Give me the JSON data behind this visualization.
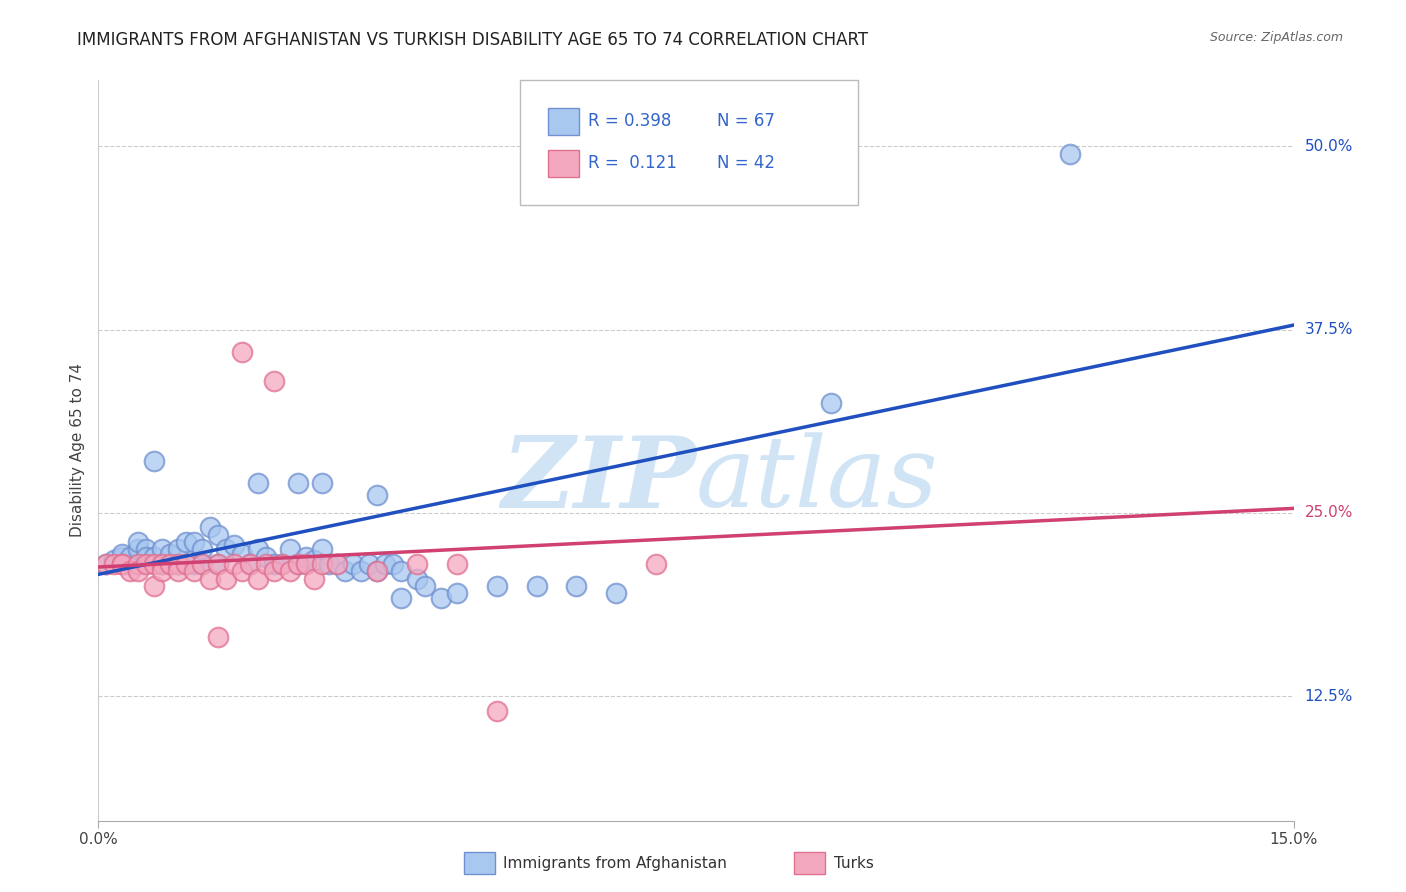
{
  "title": "IMMIGRANTS FROM AFGHANISTAN VS TURKISH DISABILITY AGE 65 TO 74 CORRELATION CHART",
  "source": "Source: ZipAtlas.com",
  "ylabel": "Disability Age 65 to 74",
  "xlim": [
    0.0,
    0.15
  ],
  "ylim": [
    0.04,
    0.545
  ],
  "blue_color": "#a8c8f0",
  "pink_color": "#f4a8c0",
  "blue_edge": "#7090d0",
  "pink_edge": "#e07090",
  "line_blue": "#2050c0",
  "line_pink": "#d04070",
  "watermark_color": "#d0e4f5",
  "grid_color": "#cccccc",
  "background_color": "#ffffff",
  "title_fontsize": 12,
  "axis_fontsize": 10,
  "legend_R_blue": "0.398",
  "legend_N_blue": "67",
  "legend_R_pink": "0.121",
  "legend_N_pink": "42",
  "blue_line_x": [
    0.0,
    0.15
  ],
  "blue_line_y": [
    0.208,
    0.378
  ],
  "pink_line_x": [
    0.0,
    0.15
  ],
  "pink_line_y": [
    0.213,
    0.253
  ],
  "afghanistan_x": [
    0.001,
    0.002,
    0.003,
    0.003,
    0.004,
    0.004,
    0.005,
    0.005,
    0.005,
    0.006,
    0.006,
    0.006,
    0.007,
    0.007,
    0.008,
    0.008,
    0.009,
    0.009,
    0.01,
    0.01,
    0.011,
    0.011,
    0.012,
    0.012,
    0.013,
    0.013,
    0.014,
    0.015,
    0.015,
    0.016,
    0.017,
    0.018,
    0.019,
    0.02,
    0.021,
    0.022,
    0.023,
    0.024,
    0.025,
    0.026,
    0.027,
    0.028,
    0.029,
    0.03,
    0.031,
    0.032,
    0.033,
    0.034,
    0.035,
    0.036,
    0.037,
    0.038,
    0.04,
    0.041,
    0.043,
    0.045,
    0.05,
    0.055,
    0.06,
    0.065,
    0.02,
    0.025,
    0.028,
    0.035,
    0.038,
    0.092,
    0.122
  ],
  "afghanistan_y": [
    0.215,
    0.218,
    0.22,
    0.222,
    0.215,
    0.22,
    0.215,
    0.225,
    0.23,
    0.218,
    0.225,
    0.22,
    0.22,
    0.285,
    0.215,
    0.225,
    0.215,
    0.222,
    0.215,
    0.225,
    0.215,
    0.23,
    0.215,
    0.23,
    0.215,
    0.225,
    0.24,
    0.215,
    0.235,
    0.225,
    0.228,
    0.222,
    0.215,
    0.225,
    0.22,
    0.215,
    0.215,
    0.225,
    0.215,
    0.22,
    0.218,
    0.225,
    0.215,
    0.215,
    0.21,
    0.215,
    0.21,
    0.215,
    0.21,
    0.215,
    0.215,
    0.21,
    0.205,
    0.2,
    0.192,
    0.195,
    0.2,
    0.2,
    0.2,
    0.195,
    0.27,
    0.27,
    0.27,
    0.262,
    0.192,
    0.325,
    0.495
  ],
  "turkish_x": [
    0.001,
    0.002,
    0.003,
    0.003,
    0.004,
    0.005,
    0.005,
    0.006,
    0.007,
    0.007,
    0.008,
    0.008,
    0.009,
    0.01,
    0.01,
    0.011,
    0.012,
    0.013,
    0.014,
    0.015,
    0.016,
    0.017,
    0.018,
    0.019,
    0.02,
    0.021,
    0.022,
    0.023,
    0.024,
    0.025,
    0.026,
    0.027,
    0.028,
    0.015,
    0.018,
    0.022,
    0.03,
    0.035,
    0.04,
    0.045,
    0.05,
    0.07
  ],
  "turkish_y": [
    0.215,
    0.215,
    0.215,
    0.215,
    0.21,
    0.215,
    0.21,
    0.215,
    0.215,
    0.2,
    0.215,
    0.21,
    0.215,
    0.215,
    0.21,
    0.215,
    0.21,
    0.215,
    0.205,
    0.215,
    0.205,
    0.215,
    0.21,
    0.215,
    0.205,
    0.215,
    0.21,
    0.215,
    0.21,
    0.215,
    0.215,
    0.205,
    0.215,
    0.165,
    0.36,
    0.34,
    0.215,
    0.21,
    0.215,
    0.215,
    0.115,
    0.215
  ]
}
